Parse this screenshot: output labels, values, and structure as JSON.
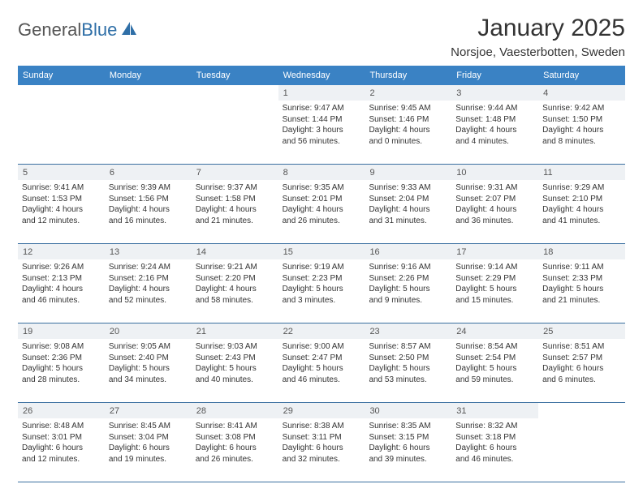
{
  "brand": {
    "name_gray": "General",
    "name_blue": "Blue"
  },
  "title": "January 2025",
  "location": "Norsjoe, Vaesterbotten, Sweden",
  "colors": {
    "header_bg": "#3a82c4",
    "header_text": "#ffffff",
    "daynum_bg": "#eef1f4",
    "rule": "#3a6fa0",
    "text": "#333333",
    "logo_gray": "#555555",
    "logo_blue": "#2f6fa7"
  },
  "weekdays": [
    "Sunday",
    "Monday",
    "Tuesday",
    "Wednesday",
    "Thursday",
    "Friday",
    "Saturday"
  ],
  "weeks": [
    {
      "nums": [
        "",
        "",
        "",
        "1",
        "2",
        "3",
        "4"
      ],
      "cells": [
        null,
        null,
        null,
        {
          "sunrise": "Sunrise: 9:47 AM",
          "sunset": "Sunset: 1:44 PM",
          "day1": "Daylight: 3 hours",
          "day2": "and 56 minutes."
        },
        {
          "sunrise": "Sunrise: 9:45 AM",
          "sunset": "Sunset: 1:46 PM",
          "day1": "Daylight: 4 hours",
          "day2": "and 0 minutes."
        },
        {
          "sunrise": "Sunrise: 9:44 AM",
          "sunset": "Sunset: 1:48 PM",
          "day1": "Daylight: 4 hours",
          "day2": "and 4 minutes."
        },
        {
          "sunrise": "Sunrise: 9:42 AM",
          "sunset": "Sunset: 1:50 PM",
          "day1": "Daylight: 4 hours",
          "day2": "and 8 minutes."
        }
      ]
    },
    {
      "nums": [
        "5",
        "6",
        "7",
        "8",
        "9",
        "10",
        "11"
      ],
      "cells": [
        {
          "sunrise": "Sunrise: 9:41 AM",
          "sunset": "Sunset: 1:53 PM",
          "day1": "Daylight: 4 hours",
          "day2": "and 12 minutes."
        },
        {
          "sunrise": "Sunrise: 9:39 AM",
          "sunset": "Sunset: 1:56 PM",
          "day1": "Daylight: 4 hours",
          "day2": "and 16 minutes."
        },
        {
          "sunrise": "Sunrise: 9:37 AM",
          "sunset": "Sunset: 1:58 PM",
          "day1": "Daylight: 4 hours",
          "day2": "and 21 minutes."
        },
        {
          "sunrise": "Sunrise: 9:35 AM",
          "sunset": "Sunset: 2:01 PM",
          "day1": "Daylight: 4 hours",
          "day2": "and 26 minutes."
        },
        {
          "sunrise": "Sunrise: 9:33 AM",
          "sunset": "Sunset: 2:04 PM",
          "day1": "Daylight: 4 hours",
          "day2": "and 31 minutes."
        },
        {
          "sunrise": "Sunrise: 9:31 AM",
          "sunset": "Sunset: 2:07 PM",
          "day1": "Daylight: 4 hours",
          "day2": "and 36 minutes."
        },
        {
          "sunrise": "Sunrise: 9:29 AM",
          "sunset": "Sunset: 2:10 PM",
          "day1": "Daylight: 4 hours",
          "day2": "and 41 minutes."
        }
      ]
    },
    {
      "nums": [
        "12",
        "13",
        "14",
        "15",
        "16",
        "17",
        "18"
      ],
      "cells": [
        {
          "sunrise": "Sunrise: 9:26 AM",
          "sunset": "Sunset: 2:13 PM",
          "day1": "Daylight: 4 hours",
          "day2": "and 46 minutes."
        },
        {
          "sunrise": "Sunrise: 9:24 AM",
          "sunset": "Sunset: 2:16 PM",
          "day1": "Daylight: 4 hours",
          "day2": "and 52 minutes."
        },
        {
          "sunrise": "Sunrise: 9:21 AM",
          "sunset": "Sunset: 2:20 PM",
          "day1": "Daylight: 4 hours",
          "day2": "and 58 minutes."
        },
        {
          "sunrise": "Sunrise: 9:19 AM",
          "sunset": "Sunset: 2:23 PM",
          "day1": "Daylight: 5 hours",
          "day2": "and 3 minutes."
        },
        {
          "sunrise": "Sunrise: 9:16 AM",
          "sunset": "Sunset: 2:26 PM",
          "day1": "Daylight: 5 hours",
          "day2": "and 9 minutes."
        },
        {
          "sunrise": "Sunrise: 9:14 AM",
          "sunset": "Sunset: 2:29 PM",
          "day1": "Daylight: 5 hours",
          "day2": "and 15 minutes."
        },
        {
          "sunrise": "Sunrise: 9:11 AM",
          "sunset": "Sunset: 2:33 PM",
          "day1": "Daylight: 5 hours",
          "day2": "and 21 minutes."
        }
      ]
    },
    {
      "nums": [
        "19",
        "20",
        "21",
        "22",
        "23",
        "24",
        "25"
      ],
      "cells": [
        {
          "sunrise": "Sunrise: 9:08 AM",
          "sunset": "Sunset: 2:36 PM",
          "day1": "Daylight: 5 hours",
          "day2": "and 28 minutes."
        },
        {
          "sunrise": "Sunrise: 9:05 AM",
          "sunset": "Sunset: 2:40 PM",
          "day1": "Daylight: 5 hours",
          "day2": "and 34 minutes."
        },
        {
          "sunrise": "Sunrise: 9:03 AM",
          "sunset": "Sunset: 2:43 PM",
          "day1": "Daylight: 5 hours",
          "day2": "and 40 minutes."
        },
        {
          "sunrise": "Sunrise: 9:00 AM",
          "sunset": "Sunset: 2:47 PM",
          "day1": "Daylight: 5 hours",
          "day2": "and 46 minutes."
        },
        {
          "sunrise": "Sunrise: 8:57 AM",
          "sunset": "Sunset: 2:50 PM",
          "day1": "Daylight: 5 hours",
          "day2": "and 53 minutes."
        },
        {
          "sunrise": "Sunrise: 8:54 AM",
          "sunset": "Sunset: 2:54 PM",
          "day1": "Daylight: 5 hours",
          "day2": "and 59 minutes."
        },
        {
          "sunrise": "Sunrise: 8:51 AM",
          "sunset": "Sunset: 2:57 PM",
          "day1": "Daylight: 6 hours",
          "day2": "and 6 minutes."
        }
      ]
    },
    {
      "nums": [
        "26",
        "27",
        "28",
        "29",
        "30",
        "31",
        ""
      ],
      "cells": [
        {
          "sunrise": "Sunrise: 8:48 AM",
          "sunset": "Sunset: 3:01 PM",
          "day1": "Daylight: 6 hours",
          "day2": "and 12 minutes."
        },
        {
          "sunrise": "Sunrise: 8:45 AM",
          "sunset": "Sunset: 3:04 PM",
          "day1": "Daylight: 6 hours",
          "day2": "and 19 minutes."
        },
        {
          "sunrise": "Sunrise: 8:41 AM",
          "sunset": "Sunset: 3:08 PM",
          "day1": "Daylight: 6 hours",
          "day2": "and 26 minutes."
        },
        {
          "sunrise": "Sunrise: 8:38 AM",
          "sunset": "Sunset: 3:11 PM",
          "day1": "Daylight: 6 hours",
          "day2": "and 32 minutes."
        },
        {
          "sunrise": "Sunrise: 8:35 AM",
          "sunset": "Sunset: 3:15 PM",
          "day1": "Daylight: 6 hours",
          "day2": "and 39 minutes."
        },
        {
          "sunrise": "Sunrise: 8:32 AM",
          "sunset": "Sunset: 3:18 PM",
          "day1": "Daylight: 6 hours",
          "day2": "and 46 minutes."
        },
        null
      ]
    }
  ]
}
